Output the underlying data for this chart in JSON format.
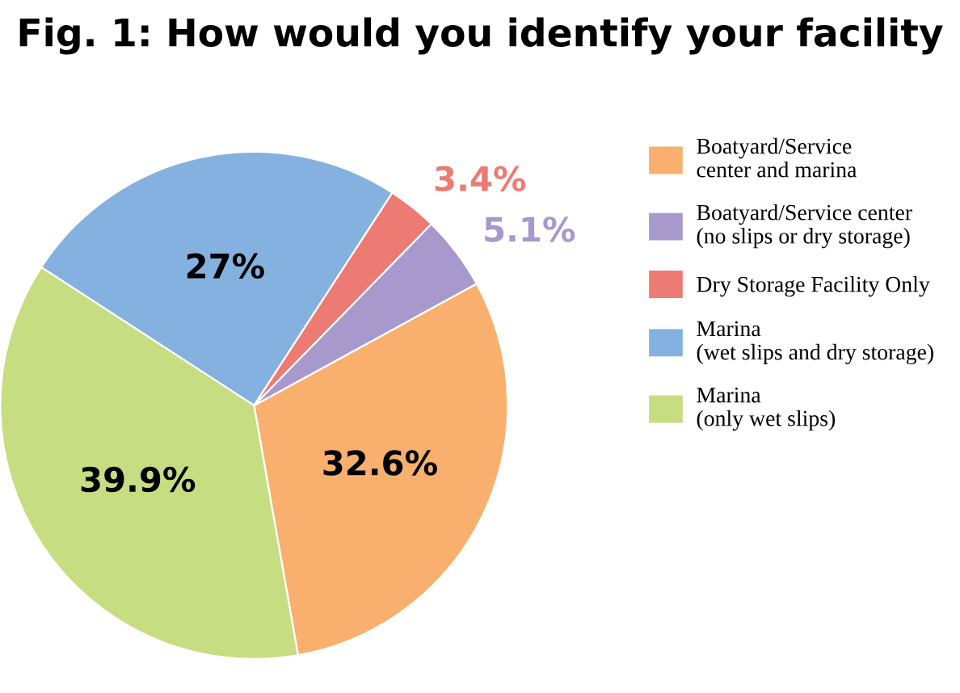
{
  "chart_data": {
    "type": "pie",
    "title": "Fig. 1: How would you identify your facility",
    "categories": [
      "Boatyard/Service\ncenter and marina",
      "Boatyard/Service center\n(no slips or dry storage)",
      "Dry Storage Facility Only",
      "Marina\n(wet slips and dry storage)",
      "Marina\n(only wet slips)"
    ],
    "values": [
      32.6,
      5.1,
      3.4,
      27,
      39.9
    ],
    "colors": [
      "#f9b06f",
      "#a899cc",
      "#ee7a74",
      "#84b1df",
      "#c6dd82"
    ],
    "value_labels": [
      "32.6%",
      "5.1%",
      "3.4%",
      "27%",
      "39.9%"
    ],
    "legend": "right"
  }
}
